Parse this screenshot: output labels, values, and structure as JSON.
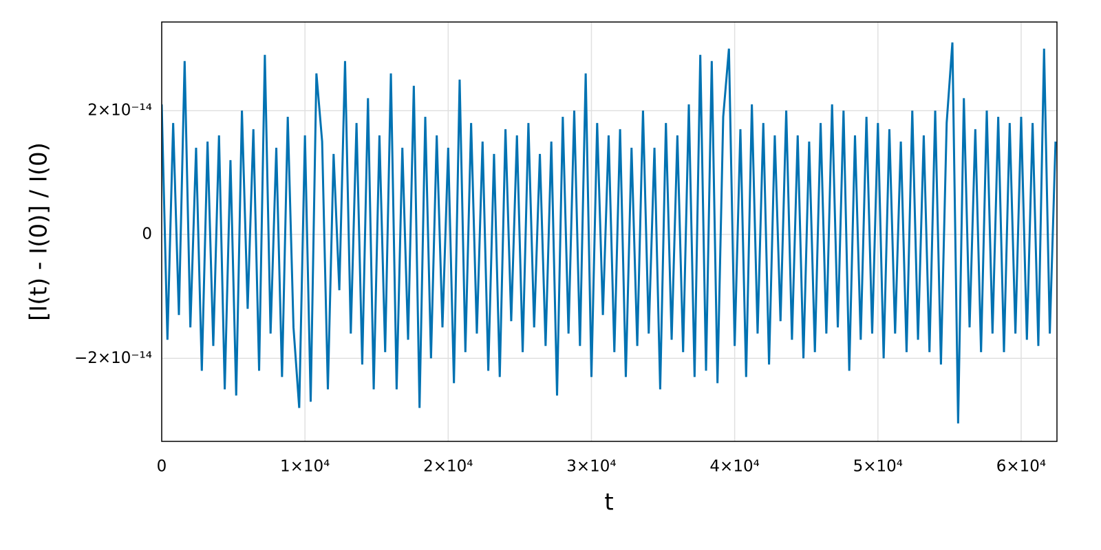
{
  "chart_data": {
    "type": "line",
    "xlabel": "t",
    "ylabel": "[I(t) - I(0)] / I(0)",
    "xlim": [
      0,
      62500
    ],
    "ylim": [
      -3.34e-14,
      3.43e-14
    ],
    "xticks": [
      0,
      {
        "value": 10000,
        "label": "1×10⁴"
      },
      {
        "value": 20000,
        "label": "2×10⁴"
      },
      {
        "value": 30000,
        "label": "3×10⁴"
      },
      {
        "value": 40000,
        "label": "4×10⁴"
      },
      {
        "value": 50000,
        "label": "5×10⁴"
      },
      {
        "value": 60000,
        "label": "6×10⁴"
      }
    ],
    "yticks": [
      {
        "value": -2e-14,
        "label": "−2×10⁻¹⁴"
      },
      0,
      {
        "value": 2e-14,
        "label": "2×10⁻¹⁴"
      }
    ],
    "grid": true,
    "x": [
      0,
      400,
      800,
      1200,
      1600,
      2000,
      2400,
      2800,
      3200,
      3600,
      4000,
      4400,
      4800,
      5200,
      5600,
      6000,
      6400,
      6800,
      7200,
      7600,
      8000,
      8400,
      8800,
      9200,
      9600,
      10000,
      10400,
      10800,
      11200,
      11600,
      12000,
      12400,
      12800,
      13200,
      13600,
      14000,
      14400,
      14800,
      15200,
      15600,
      16000,
      16400,
      16800,
      17200,
      17600,
      18000,
      18400,
      18800,
      19200,
      19600,
      20000,
      20400,
      20800,
      21200,
      21600,
      22000,
      22400,
      22800,
      23200,
      23600,
      24000,
      24400,
      24800,
      25200,
      25600,
      26000,
      26400,
      26800,
      27200,
      27600,
      28000,
      28400,
      28800,
      29200,
      29600,
      30000,
      30400,
      30800,
      31200,
      31600,
      32000,
      32400,
      32800,
      33200,
      33600,
      34000,
      34400,
      34800,
      35200,
      35600,
      36000,
      36400,
      36800,
      37200,
      37600,
      38000,
      38400,
      38800,
      39200,
      39600,
      40000,
      40400,
      40800,
      41200,
      41600,
      42000,
      42400,
      42800,
      43200,
      43600,
      44000,
      44400,
      44800,
      45200,
      45600,
      46000,
      46400,
      46800,
      47200,
      47600,
      48000,
      48400,
      48800,
      49200,
      49600,
      50000,
      50400,
      50800,
      51200,
      51600,
      52000,
      52400,
      52800,
      53200,
      53600,
      54000,
      54400,
      54800,
      55200,
      55600,
      56000,
      56400,
      56800,
      57200,
      57600,
      58000,
      58400,
      58800,
      59200,
      59600,
      60000,
      60400,
      60800,
      61200,
      61600,
      62000,
      62400
    ],
    "series": [
      {
        "color": "#0072b2",
        "values": [
          2.1e-14,
          -1.7e-14,
          1.8e-14,
          -1.3e-14,
          2.8e-14,
          -1.5e-14,
          1.4e-14,
          -2.2e-14,
          1.5e-14,
          -1.8e-14,
          1.6e-14,
          -2.5e-14,
          1.2e-14,
          -2.6e-14,
          2e-14,
          -1.2e-14,
          1.7e-14,
          -2.2e-14,
          2.9e-14,
          -1.6e-14,
          1.4e-14,
          -2.3e-14,
          1.9e-14,
          -1.5e-14,
          -2.8e-14,
          1.6e-14,
          -2.7e-14,
          2.6e-14,
          1.5e-14,
          -2.5e-14,
          1.3e-14,
          -9e-15,
          2.8e-14,
          -1.6e-14,
          1.8e-14,
          -2.1e-14,
          2.2e-14,
          -2.5e-14,
          1.6e-14,
          -1.9e-14,
          2.6e-14,
          -2.5e-14,
          1.4e-14,
          -1.7e-14,
          2.4e-14,
          -2.8e-14,
          1.9e-14,
          -2e-14,
          1.6e-14,
          -1.5e-14,
          1.4e-14,
          -2.4e-14,
          2.5e-14,
          -1.9e-14,
          1.8e-14,
          -1.6e-14,
          1.5e-14,
          -2.2e-14,
          1.3e-14,
          -2.3e-14,
          1.7e-14,
          -1.4e-14,
          1.6e-14,
          -1.9e-14,
          1.8e-14,
          -1.5e-14,
          1.3e-14,
          -1.8e-14,
          1.5e-14,
          -2.6e-14,
          1.9e-14,
          -1.6e-14,
          2e-14,
          -1.8e-14,
          2.6e-14,
          -2.3e-14,
          1.8e-14,
          -1.3e-14,
          1.6e-14,
          -1.9e-14,
          1.7e-14,
          -2.3e-14,
          1.4e-14,
          -1.8e-14,
          2e-14,
          -1.6e-14,
          1.4e-14,
          -2.5e-14,
          1.8e-14,
          -1.7e-14,
          1.6e-14,
          -1.9e-14,
          2.1e-14,
          -2.3e-14,
          2.9e-14,
          -2.2e-14,
          2.8e-14,
          -2.4e-14,
          1.9e-14,
          3e-14,
          -1.8e-14,
          1.7e-14,
          -2.3e-14,
          2.1e-14,
          -1.6e-14,
          1.8e-14,
          -2.1e-14,
          1.6e-14,
          -1.4e-14,
          2e-14,
          -1.7e-14,
          1.6e-14,
          -2e-14,
          1.5e-14,
          -1.9e-14,
          1.8e-14,
          -1.6e-14,
          2.1e-14,
          -1.5e-14,
          2e-14,
          -2.2e-14,
          1.6e-14,
          -1.7e-14,
          1.9e-14,
          -1.6e-14,
          1.8e-14,
          -2e-14,
          1.7e-14,
          -1.6e-14,
          1.5e-14,
          -1.9e-14,
          2e-14,
          -1.7e-14,
          1.6e-14,
          -1.9e-14,
          2e-14,
          -2.1e-14,
          1.8e-14,
          3.1e-14,
          -3.05e-14,
          2.2e-14,
          -1.5e-14,
          1.7e-14,
          -1.9e-14,
          2e-14,
          -1.6e-14,
          1.9e-14,
          -1.9e-14,
          1.8e-14,
          -1.6e-14,
          1.9e-14,
          -1.7e-14,
          1.8e-14,
          -1.8e-14,
          3e-14,
          -1.6e-14,
          1.5e-14
        ]
      }
    ]
  }
}
